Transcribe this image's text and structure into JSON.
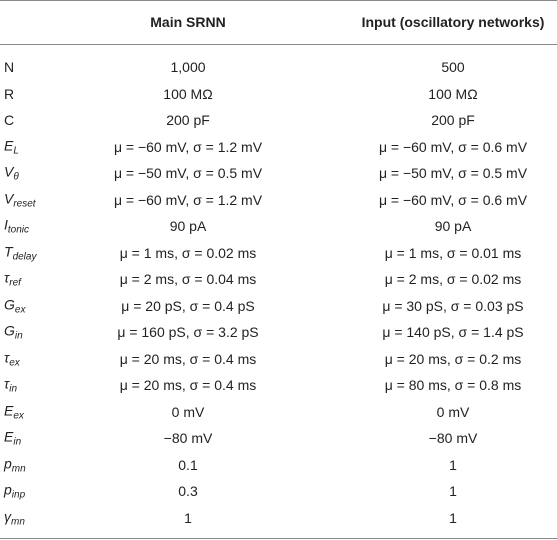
{
  "table": {
    "header": [
      "",
      "Main SRNN",
      "Input (oscillatory networks)"
    ],
    "rows": [
      [
        {
          "symbol": "N"
        },
        "1,000",
        "500"
      ],
      [
        {
          "symbol": "R"
        },
        "100 MΩ",
        "100 MΩ"
      ],
      [
        {
          "symbol": "C"
        },
        "200 pF",
        "200 pF"
      ],
      [
        {
          "symbol": "E",
          "sub": "L"
        },
        "μ = −60 mV, σ = 1.2 mV",
        "μ = −60 mV, σ = 0.6 mV"
      ],
      [
        {
          "symbol": "V",
          "sub": "θ"
        },
        "μ = −50 mV, σ = 0.5 mV",
        "μ = −50 mV, σ = 0.5 mV"
      ],
      [
        {
          "symbol": "V",
          "sub": "reset"
        },
        "μ = −60 mV, σ = 1.2 mV",
        "μ = −60 mV, σ = 0.6 mV"
      ],
      [
        {
          "symbol": "I",
          "sub": "tonic"
        },
        "90 pA",
        "90 pA"
      ],
      [
        {
          "symbol": "T",
          "sub": "delay"
        },
        "μ = 1 ms, σ = 0.02 ms",
        "μ = 1 ms, σ = 0.01 ms"
      ],
      [
        {
          "symbol": "τ",
          "sub": "ref"
        },
        "μ = 2 ms, σ = 0.04 ms",
        "μ = 2 ms, σ = 0.02 ms"
      ],
      [
        {
          "symbol": "G",
          "sub": "ex"
        },
        "μ = 20 pS, σ = 0.4 pS",
        "μ = 30 pS, σ = 0.03 pS"
      ],
      [
        {
          "symbol": "G",
          "sub": "in"
        },
        "μ = 160 pS, σ = 3.2 pS",
        "μ = 140 pS, σ = 1.4 pS"
      ],
      [
        {
          "symbol": "τ",
          "sub": "ex"
        },
        "μ = 20 ms, σ = 0.4 ms",
        "μ = 20 ms, σ = 0.2 ms"
      ],
      [
        {
          "symbol": "τ",
          "sub": "in"
        },
        "μ = 20 ms, σ = 0.4 ms",
        "μ = 80 ms, σ = 0.8 ms"
      ],
      [
        {
          "symbol": "E",
          "sub": "ex"
        },
        "0 mV",
        "0 mV"
      ],
      [
        {
          "symbol": "E",
          "sub": "in"
        },
        "−80 mV",
        "−80 mV"
      ],
      [
        {
          "symbol": "p",
          "sub": "mn"
        },
        "0.1",
        "1"
      ],
      [
        {
          "symbol": "p",
          "sub": "inp"
        },
        "0.3",
        "1"
      ],
      [
        {
          "symbol": "γ",
          "sub": "mn"
        },
        "1",
        "1"
      ]
    ]
  }
}
